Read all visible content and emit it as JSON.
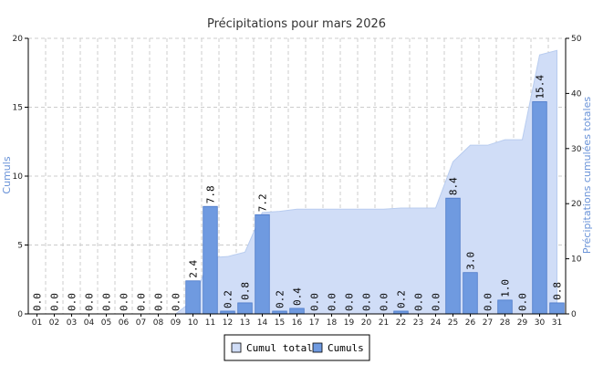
{
  "chart_data": {
    "type": "bar",
    "title": "Précipitations pour mars 2026",
    "ylabel": "Cumuls",
    "y2label": "Précipitations cumulées totales",
    "ylim": [
      0,
      20
    ],
    "yticks": [
      0,
      5,
      10,
      15,
      20
    ],
    "y2lim": [
      0,
      50
    ],
    "y2ticks": [
      0,
      10,
      20,
      30,
      40,
      50
    ],
    "grid": true,
    "legend_position": "bottom-center",
    "categories": [
      "01",
      "02",
      "03",
      "04",
      "05",
      "06",
      "07",
      "08",
      "09",
      "10",
      "11",
      "12",
      "13",
      "14",
      "15",
      "16",
      "17",
      "18",
      "19",
      "20",
      "21",
      "22",
      "23",
      "24",
      "25",
      "26",
      "27",
      "28",
      "29",
      "30",
      "31"
    ],
    "series": [
      {
        "name": "Cumul total",
        "type": "area",
        "axis": "right",
        "color": "#d0ddf7",
        "values": [
          0,
          0,
          0,
          0,
          0,
          0,
          0,
          0,
          0,
          2.4,
          10.2,
          10.4,
          11.2,
          18.4,
          18.6,
          19.0,
          19.0,
          19.0,
          19.0,
          19.0,
          19.0,
          19.2,
          19.2,
          19.2,
          27.6,
          30.6,
          30.6,
          31.6,
          31.6,
          47.0,
          47.8
        ]
      },
      {
        "name": "Cumuls",
        "type": "bar",
        "axis": "left",
        "color": "#6f9ae0",
        "values": [
          0.0,
          0.0,
          0.0,
          0.0,
          0.0,
          0.0,
          0.0,
          0.0,
          0.0,
          2.4,
          7.8,
          0.2,
          0.8,
          7.2,
          0.2,
          0.4,
          0.0,
          0.0,
          0.0,
          0.0,
          0.0,
          0.2,
          0.0,
          0.0,
          8.4,
          3.0,
          0.0,
          1.0,
          0.0,
          15.4,
          0.8
        ],
        "labels": [
          "0.0",
          "0.0",
          "0.0",
          "0.0",
          "0.0",
          "0.0",
          "0.0",
          "0.0",
          "0.0",
          "2.4",
          "7.8",
          "0.2",
          "0.8",
          "7.2",
          "0.2",
          "0.4",
          "0.0",
          "0.0",
          "0.0",
          "0.0",
          "0.0",
          "0.2",
          "0.0",
          "0.0",
          "8.4",
          "3.0",
          "0.0",
          "1.0",
          "0.0",
          "15.4",
          "0.8"
        ]
      }
    ],
    "colors": {
      "axis_title": "#6a93d8",
      "bar_stroke": "#4a78c8",
      "area_stroke": "#b8ccef",
      "grid": "#cccccc"
    }
  }
}
